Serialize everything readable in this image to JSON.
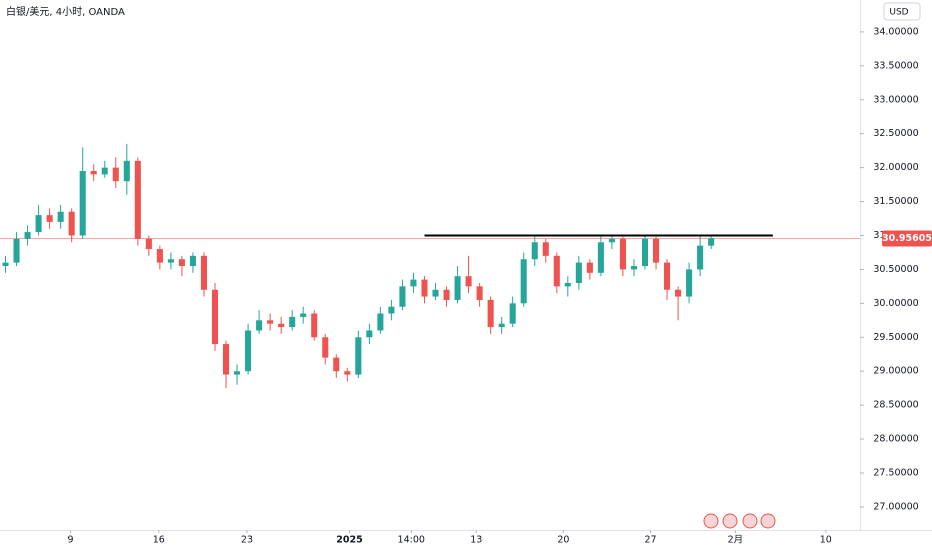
{
  "chart_data": {
    "type": "candlestick",
    "title": "白银/美元, 4小时, OANDA",
    "currency": "USD",
    "up_color": "#26a69a",
    "down_color": "#ef5350",
    "open": [
      30.55,
      30.6,
      30.95,
      31.05,
      31.3,
      31.2,
      31.35,
      31.0,
      31.95,
      31.9,
      32.0,
      31.8,
      32.1,
      30.95,
      30.8,
      30.6,
      30.65,
      30.55,
      30.7,
      30.2,
      29.4,
      28.95,
      29.0,
      29.6,
      29.75,
      29.7,
      29.65,
      29.8,
      29.85,
      29.5,
      29.2,
      29.0,
      28.95,
      29.5,
      29.6,
      29.85,
      29.95,
      30.25,
      30.35,
      30.1,
      30.2,
      30.05,
      30.4,
      30.25,
      30.05,
      29.65,
      29.7,
      30.0,
      30.65,
      30.9,
      30.7,
      30.25,
      30.3,
      30.6,
      30.45,
      30.9,
      30.95,
      30.5,
      30.55,
      30.95,
      30.6,
      30.2,
      30.1,
      30.5,
      30.85
    ],
    "high": [
      30.7,
      31.05,
      31.15,
      31.45,
      31.4,
      31.45,
      31.4,
      32.3,
      32.05,
      32.1,
      32.15,
      32.35,
      32.15,
      31.0,
      30.85,
      30.75,
      30.7,
      30.75,
      30.75,
      30.3,
      29.45,
      29.1,
      29.7,
      29.9,
      29.85,
      29.8,
      29.9,
      29.95,
      29.9,
      29.55,
      29.25,
      29.05,
      29.6,
      29.7,
      29.95,
      30.05,
      30.35,
      30.45,
      30.4,
      30.3,
      30.25,
      30.55,
      30.7,
      30.3,
      30.1,
      29.8,
      30.1,
      30.75,
      31.0,
      30.95,
      30.75,
      30.4,
      30.7,
      30.65,
      31.0,
      31.0,
      30.98,
      30.65,
      31.0,
      30.98,
      30.65,
      30.25,
      30.6,
      31.0,
      31.0
    ],
    "low": [
      30.45,
      30.55,
      30.85,
      31.0,
      31.1,
      31.1,
      30.9,
      30.95,
      31.8,
      31.85,
      31.7,
      31.6,
      30.85,
      30.7,
      30.5,
      30.5,
      30.4,
      30.45,
      30.1,
      29.3,
      28.75,
      28.8,
      28.95,
      29.55,
      29.6,
      29.55,
      29.6,
      29.7,
      29.45,
      29.1,
      28.9,
      28.85,
      28.9,
      29.4,
      29.55,
      29.75,
      29.9,
      30.15,
      30.0,
      30.05,
      29.95,
      30.0,
      30.15,
      29.95,
      29.55,
      29.55,
      29.65,
      29.95,
      30.55,
      30.6,
      30.15,
      30.1,
      30.2,
      30.35,
      30.4,
      30.8,
      30.4,
      30.4,
      30.5,
      30.5,
      30.05,
      29.75,
      30.0,
      30.4,
      30.8
    ],
    "close": [
      30.6,
      30.95,
      31.05,
      31.3,
      31.2,
      31.35,
      31.0,
      31.95,
      31.9,
      32.0,
      31.8,
      32.1,
      30.95,
      30.8,
      30.6,
      30.65,
      30.55,
      30.7,
      30.2,
      29.4,
      28.95,
      29.0,
      29.6,
      29.75,
      29.7,
      29.65,
      29.8,
      29.85,
      29.5,
      29.2,
      29.0,
      28.95,
      29.5,
      29.6,
      29.85,
      29.95,
      30.25,
      30.35,
      30.1,
      30.2,
      30.05,
      30.4,
      30.25,
      30.05,
      29.65,
      29.7,
      30.0,
      30.65,
      30.9,
      30.7,
      30.25,
      30.3,
      30.6,
      30.45,
      30.9,
      30.95,
      30.5,
      30.55,
      30.95,
      30.6,
      30.2,
      30.1,
      30.5,
      30.85,
      30.96
    ],
    "last_price": 30.95605,
    "price_line_color": "#f7a5a5",
    "resistance_line": {
      "value": 31.0,
      "x_start": 38.0,
      "x_end": 69.6,
      "color": "#000000"
    },
    "xlim": [
      -0.5,
      77.5
    ],
    "xticks": [
      {
        "value": 5.9,
        "label": "9"
      },
      {
        "value": 13.9,
        "label": "16"
      },
      {
        "value": 21.9,
        "label": "23"
      },
      {
        "value": 31.2,
        "label": "2025"
      },
      {
        "value": 36.8,
        "label": "14:00"
      },
      {
        "value": 42.7,
        "label": "13"
      },
      {
        "value": 50.6,
        "label": "20"
      },
      {
        "value": 58.5,
        "label": "27"
      },
      {
        "value": 66.2,
        "label": "2月"
      },
      {
        "value": 74.4,
        "label": "10"
      }
    ],
    "ylim": [
      26.66,
      34.47
    ],
    "yticks": [
      {
        "value": 27,
        "label": "27.00000"
      },
      {
        "value": 27.5,
        "label": "27.50000"
      },
      {
        "value": 28,
        "label": "28.00000"
      },
      {
        "value": 28.5,
        "label": "28.50000"
      },
      {
        "value": 29,
        "label": "29.00000"
      },
      {
        "value": 29.5,
        "label": "29.50000"
      },
      {
        "value": 30,
        "label": "30.00000"
      },
      {
        "value": 30.5,
        "label": "30.50000"
      },
      {
        "value": 31,
        "label": "31.00000"
      },
      {
        "value": 31.5,
        "label": "31.50000"
      },
      {
        "value": 32,
        "label": "32.00000"
      },
      {
        "value": 32.5,
        "label": "32.50000"
      },
      {
        "value": 33,
        "label": "33.00000"
      },
      {
        "value": 33.5,
        "label": "33.50000"
      },
      {
        "value": 34,
        "label": "34.00000"
      }
    ]
  }
}
